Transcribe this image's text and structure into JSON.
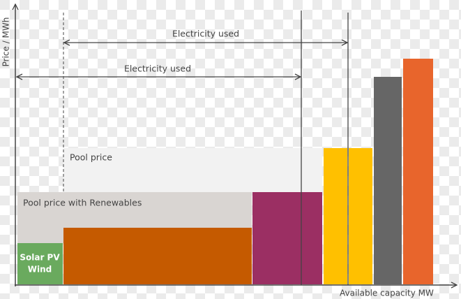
{
  "axes": {
    "y_label": "Price / MWh",
    "x_label": "Available capacity MW"
  },
  "arrows": [
    {
      "label": "Electricity used"
    },
    {
      "label": "Electricity used"
    }
  ],
  "bands": [
    {
      "label": "Pool price"
    },
    {
      "label": "Pool price with Renewables"
    }
  ],
  "blocks": [
    {
      "label_lines": [
        "Solar PV",
        "Wind"
      ]
    }
  ]
}
